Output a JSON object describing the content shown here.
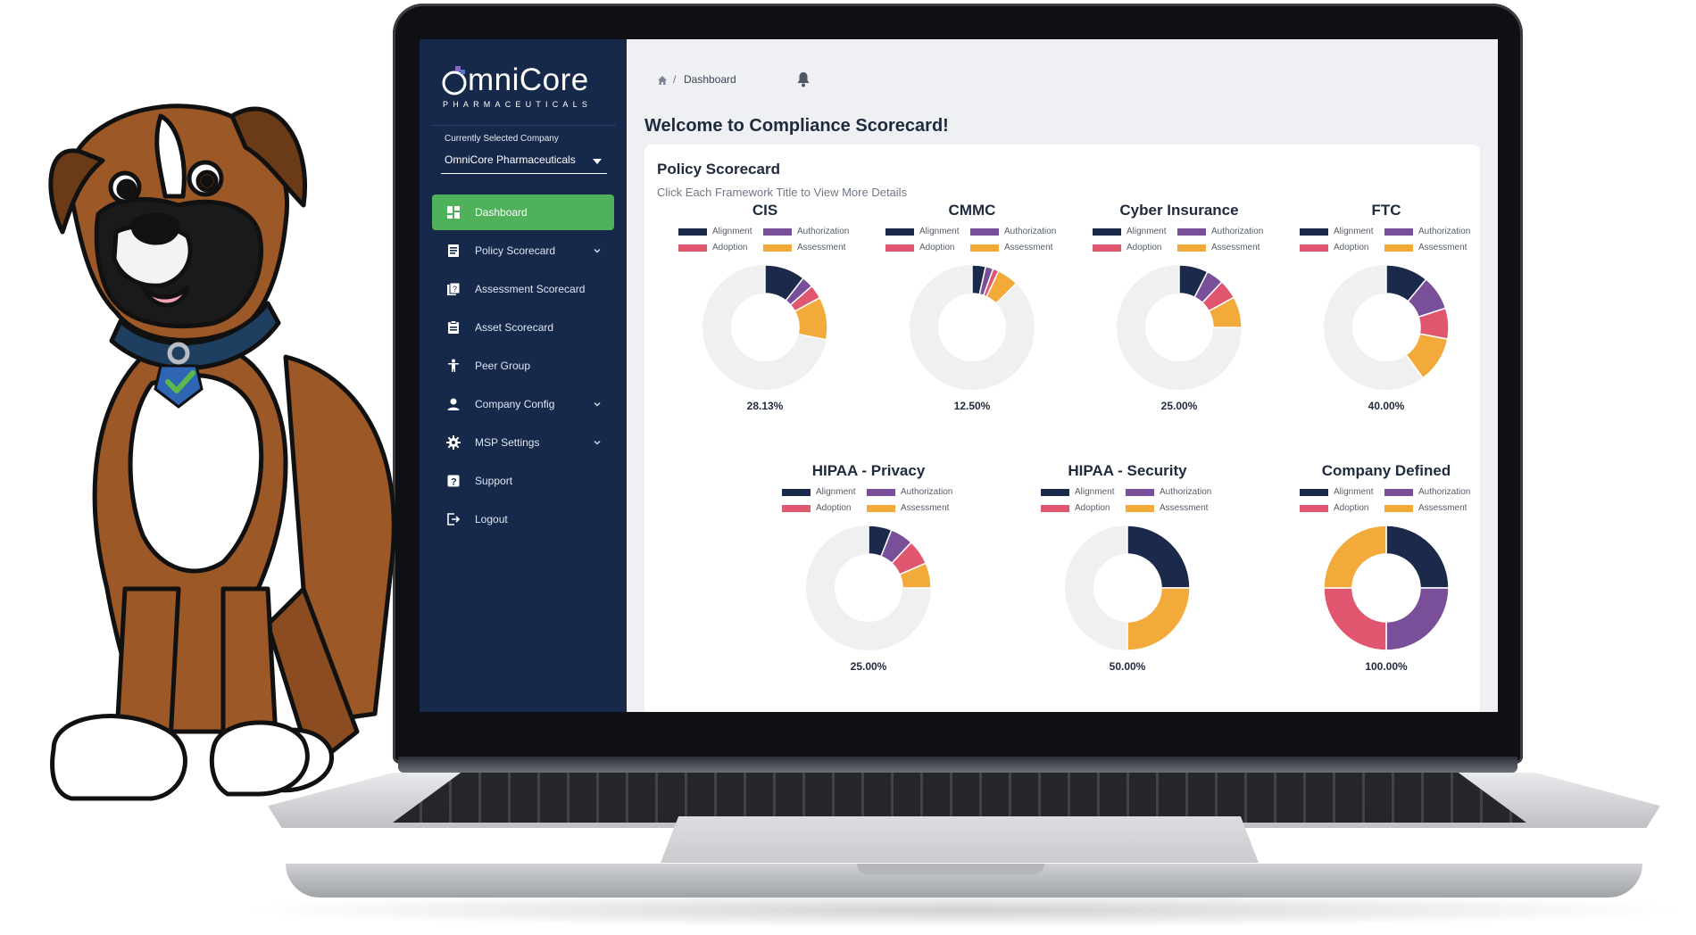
{
  "sidebar": {
    "logo": {
      "main": "mniCore",
      "sub": "PHARMACEUTICALS"
    },
    "company_label": "Currently Selected Company",
    "company_value": "OmniCore Pharmaceuticals",
    "items": [
      {
        "label": "Dashboard",
        "icon": "dashboard-icon",
        "active": true,
        "chevron": false
      },
      {
        "label": "Policy Scorecard",
        "icon": "document-icon",
        "active": false,
        "chevron": true
      },
      {
        "label": "Assessment Scorecard",
        "icon": "assessment-icon",
        "active": false,
        "chevron": false
      },
      {
        "label": "Asset Scorecard",
        "icon": "clipboard-icon",
        "active": false,
        "chevron": false
      },
      {
        "label": "Peer Group",
        "icon": "person-icon",
        "active": false,
        "chevron": false
      },
      {
        "label": "Company Config",
        "icon": "user-icon",
        "active": false,
        "chevron": true
      },
      {
        "label": "MSP Settings",
        "icon": "gear-icon",
        "active": false,
        "chevron": true
      },
      {
        "label": "Support",
        "icon": "help-icon",
        "active": false,
        "chevron": false
      },
      {
        "label": "Logout",
        "icon": "logout-icon",
        "active": false,
        "chevron": false
      }
    ]
  },
  "breadcrumb": {
    "separator": "/",
    "current": "Dashboard"
  },
  "page_title": "Welcome to Compliance Scorecard!",
  "card": {
    "title": "Policy Scorecard",
    "subtitle": "Click Each Framework Title to View More Details"
  },
  "legend_labels": [
    "Alignment",
    "Authorization",
    "Adoption",
    "Assessment"
  ],
  "colors": {
    "alignment": "#1b2a4a",
    "authorization": "#7a4f9a",
    "adoption": "#e0566f",
    "assessment": "#f2ab3a",
    "remaining": "#f0f0f0",
    "active_nav": "#4fb25b",
    "sidebar": "#17294a"
  },
  "chart_data": [
    {
      "type": "donut",
      "title": "CIS",
      "label": "28.13%",
      "series": [
        {
          "name": "Alignment",
          "value": 10.5
        },
        {
          "name": "Authorization",
          "value": 3.0
        },
        {
          "name": "Adoption",
          "value": 3.6
        },
        {
          "name": "Assessment",
          "value": 11.03
        }
      ]
    },
    {
      "type": "donut",
      "title": "CMMC",
      "label": "12.50%",
      "series": [
        {
          "name": "Alignment",
          "value": 3.5
        },
        {
          "name": "Authorization",
          "value": 2.0
        },
        {
          "name": "Adoption",
          "value": 1.5
        },
        {
          "name": "Assessment",
          "value": 5.5
        }
      ]
    },
    {
      "type": "donut",
      "title": "Cyber Insurance",
      "label": "25.00%",
      "series": [
        {
          "name": "Alignment",
          "value": 7.5
        },
        {
          "name": "Authorization",
          "value": 4.5
        },
        {
          "name": "Adoption",
          "value": 5.0
        },
        {
          "name": "Assessment",
          "value": 8.0
        }
      ]
    },
    {
      "type": "donut",
      "title": "FTC",
      "label": "40.00%",
      "series": [
        {
          "name": "Alignment",
          "value": 11.0
        },
        {
          "name": "Authorization",
          "value": 9.0
        },
        {
          "name": "Adoption",
          "value": 8.0
        },
        {
          "name": "Assessment",
          "value": 12.0
        }
      ]
    },
    {
      "type": "donut",
      "title": "HIPAA - Privacy",
      "label": "25.00%",
      "series": [
        {
          "name": "Alignment",
          "value": 6.0
        },
        {
          "name": "Authorization",
          "value": 6.0
        },
        {
          "name": "Adoption",
          "value": 6.5
        },
        {
          "name": "Assessment",
          "value": 6.5
        }
      ]
    },
    {
      "type": "donut",
      "title": "HIPAA - Security",
      "label": "50.00%",
      "series": [
        {
          "name": "Alignment",
          "value": 25.0
        },
        {
          "name": "Authorization",
          "value": 0
        },
        {
          "name": "Adoption",
          "value": 0
        },
        {
          "name": "Assessment",
          "value": 25.0
        }
      ]
    },
    {
      "type": "donut",
      "title": "Company Defined",
      "label": "100.00%",
      "series": [
        {
          "name": "Alignment",
          "value": 25.0
        },
        {
          "name": "Authorization",
          "value": 25.0
        },
        {
          "name": "Adoption",
          "value": 25.0
        },
        {
          "name": "Assessment",
          "value": 25.0
        }
      ]
    }
  ]
}
